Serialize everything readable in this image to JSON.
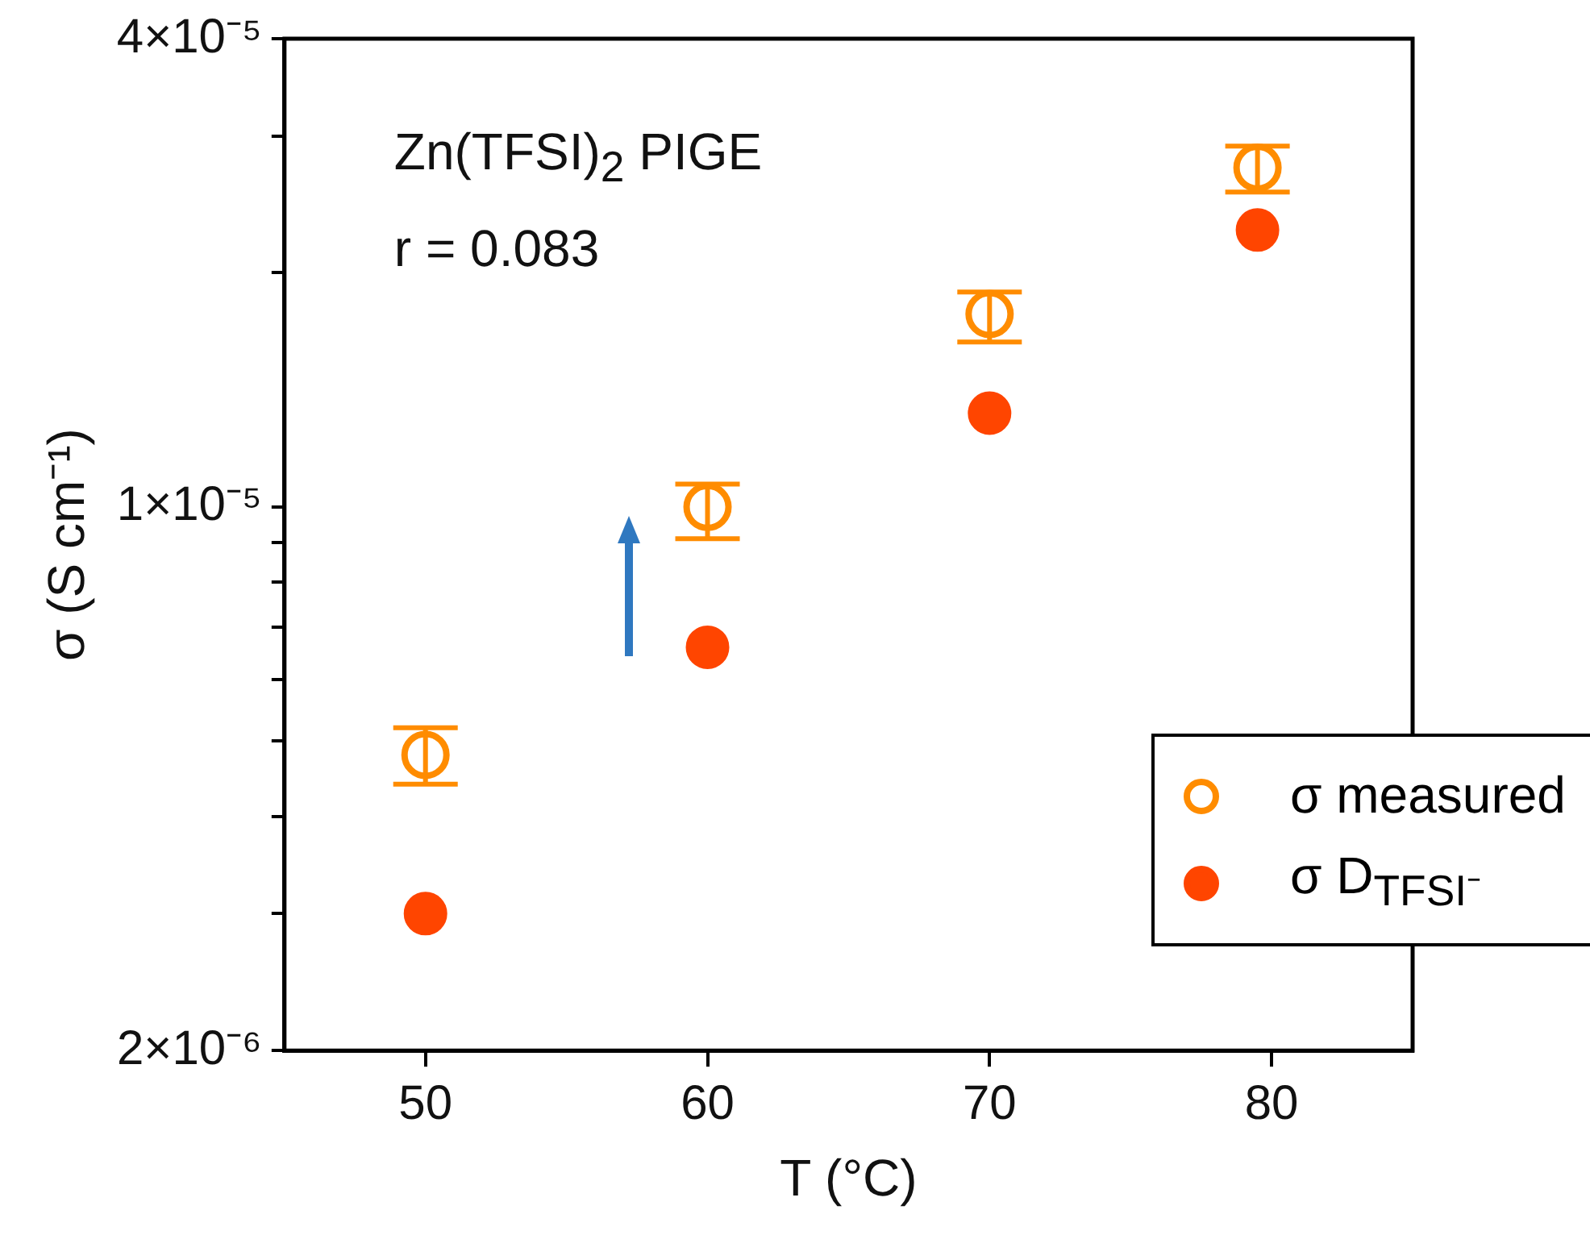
{
  "chart_data": {
    "type": "scatter",
    "xlabel": "T (°C)",
    "ylabel": "σ (S cm⁻¹)",
    "annotations": [
      "Zn(TFSI)$_{2}$ PIGE",
      "r = 0.083"
    ],
    "log": "y",
    "xlim": [
      45,
      85
    ],
    "xticks": [
      50,
      60,
      70,
      80
    ],
    "ylim": [
      2e-06,
      4e-05
    ],
    "yticks": [
      {
        "value": 2e-06,
        "label": "2×10⁻⁶"
      },
      {
        "value": 3e-06,
        "label": null
      },
      {
        "value": 4e-06,
        "label": null
      },
      {
        "value": 5e-06,
        "label": null
      },
      {
        "value": 6e-06,
        "label": null
      },
      {
        "value": 7e-06,
        "label": null
      },
      {
        "value": 8e-06,
        "label": null
      },
      {
        "value": 9e-06,
        "label": null
      },
      {
        "value": 1e-05,
        "label": "1×10⁻⁵"
      },
      {
        "value": 2e-05,
        "label": null
      },
      {
        "value": 3e-05,
        "label": null
      },
      {
        "value": 4e-05,
        "label": "4×10⁻⁵"
      }
    ],
    "grid": false,
    "legend": "bottom right",
    "marker": "circle",
    "series": [
      {
        "name": "σ measured",
        "color": "#ff8c00",
        "x": [
          50,
          60,
          70,
          79.5
        ],
        "values": [
          4.8e-06,
          1e-05,
          1.77e-05,
          2.73e-05
        ],
        "errors": [
          [
            4.4e-06,
            5.2e-06
          ],
          [
            9.1e-06,
            1.07e-05
          ],
          [
            1.63e-05,
            1.89e-05
          ],
          [
            2.54e-05,
            2.91e-05
          ]
        ]
      },
      {
        "name": "σ D$_{TFSI⁻}$",
        "color": "#ff4500",
        "x": [
          50,
          60,
          70,
          79.5
        ],
        "values": [
          3e-06,
          6.6e-06,
          1.32e-05,
          2.27e-05
        ]
      }
    ]
  }
}
